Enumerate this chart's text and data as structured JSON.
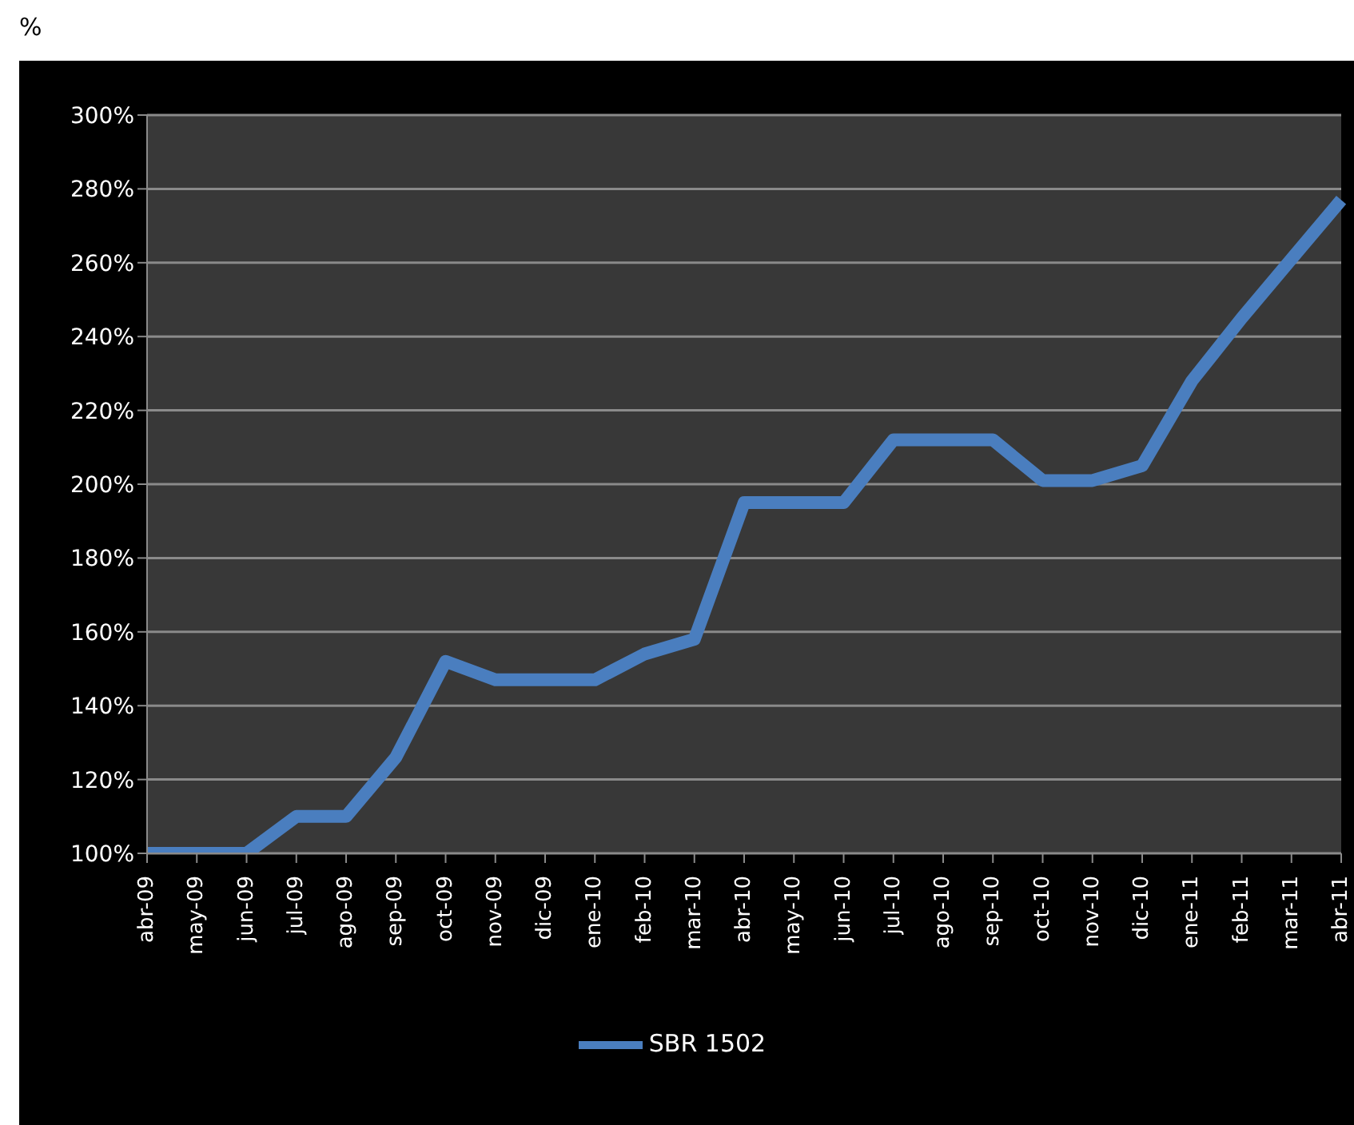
{
  "chart_data": {
    "type": "line",
    "ylabel": "%",
    "categories": [
      "abr-09",
      "may-09",
      "jun-09",
      "jul-09",
      "ago-09",
      "sep-09",
      "oct-09",
      "nov-09",
      "dic-09",
      "ene-10",
      "feb-10",
      "mar-10",
      "abr-10",
      "may-10",
      "jun-10",
      "jul-10",
      "ago-10",
      "sep-10",
      "oct-10",
      "nov-10",
      "dic-10",
      "ene-11",
      "feb-11",
      "mar-11",
      "abr-11"
    ],
    "series": [
      {
        "name": "SBR 1502",
        "color": "#4a7ebf",
        "values": [
          100,
          100,
          100,
          110,
          110,
          126,
          152,
          147,
          147,
          147,
          154,
          158,
          195,
          195,
          195,
          212,
          212,
          212,
          201,
          201,
          205,
          228,
          245,
          261,
          277
        ]
      }
    ],
    "ylim": [
      100,
      300
    ],
    "yticks": [
      {
        "value": 100,
        "label": "100%"
      },
      {
        "value": 120,
        "label": "120%"
      },
      {
        "value": 140,
        "label": "140%"
      },
      {
        "value": 160,
        "label": "160%"
      },
      {
        "value": 180,
        "label": "180%"
      },
      {
        "value": 200,
        "label": "200%"
      },
      {
        "value": 220,
        "label": "220%"
      },
      {
        "value": 240,
        "label": "240%"
      },
      {
        "value": 260,
        "label": "260%"
      },
      {
        "value": 280,
        "label": "280%"
      },
      {
        "value": 300,
        "label": "300%"
      }
    ],
    "grid": "y",
    "legend": "bottom",
    "marker": "none",
    "line_style": "solid"
  }
}
